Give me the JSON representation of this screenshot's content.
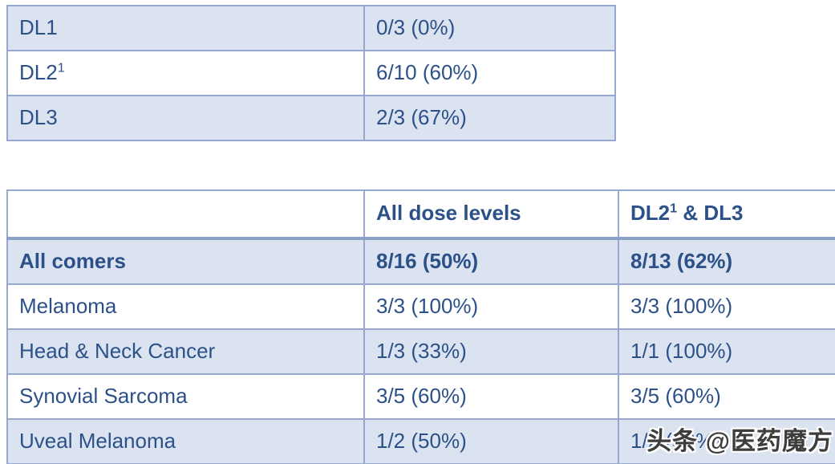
{
  "colors": {
    "row_fill": "#dbe3f1",
    "row_alt": "#ffffff",
    "grid_border": "#96a8cf",
    "accent_band": "#8ba1c7",
    "text": "#2c5189",
    "watermark_text": "#3d3d3d"
  },
  "dose_table": {
    "rows": [
      {
        "label": "DL1",
        "label_sup": "",
        "value": "0/3 (0%)"
      },
      {
        "label": "DL2",
        "label_sup": "1",
        "value": "6/10 (60%)"
      },
      {
        "label": "DL3",
        "label_sup": "",
        "value": "2/3 (67%)"
      }
    ]
  },
  "cohort_table": {
    "header": {
      "col_label": "",
      "col_all": "All dose levels",
      "col_dl23_main": "DL2",
      "col_dl23_sup": "1",
      "col_dl23_rest": " & DL3"
    },
    "rows": [
      {
        "label": "All comers",
        "all_dose": "8/16 (50%)",
        "dl23": "8/13 (62%)"
      },
      {
        "label": "Melanoma",
        "all_dose": "3/3 (100%)",
        "dl23": "3/3 (100%)"
      },
      {
        "label": "Head & Neck Cancer",
        "all_dose": "1/3 (33%)",
        "dl23": "1/1 (100%)"
      },
      {
        "label": "Synovial Sarcoma",
        "all_dose": "3/5 (60%)",
        "dl23": "3/5 (60%)"
      },
      {
        "label": "Uveal Melanoma",
        "all_dose": "1/2 (50%)",
        "dl23": "1/2 (50%)"
      }
    ]
  },
  "watermark": {
    "text": "头条 @医药魔方"
  }
}
